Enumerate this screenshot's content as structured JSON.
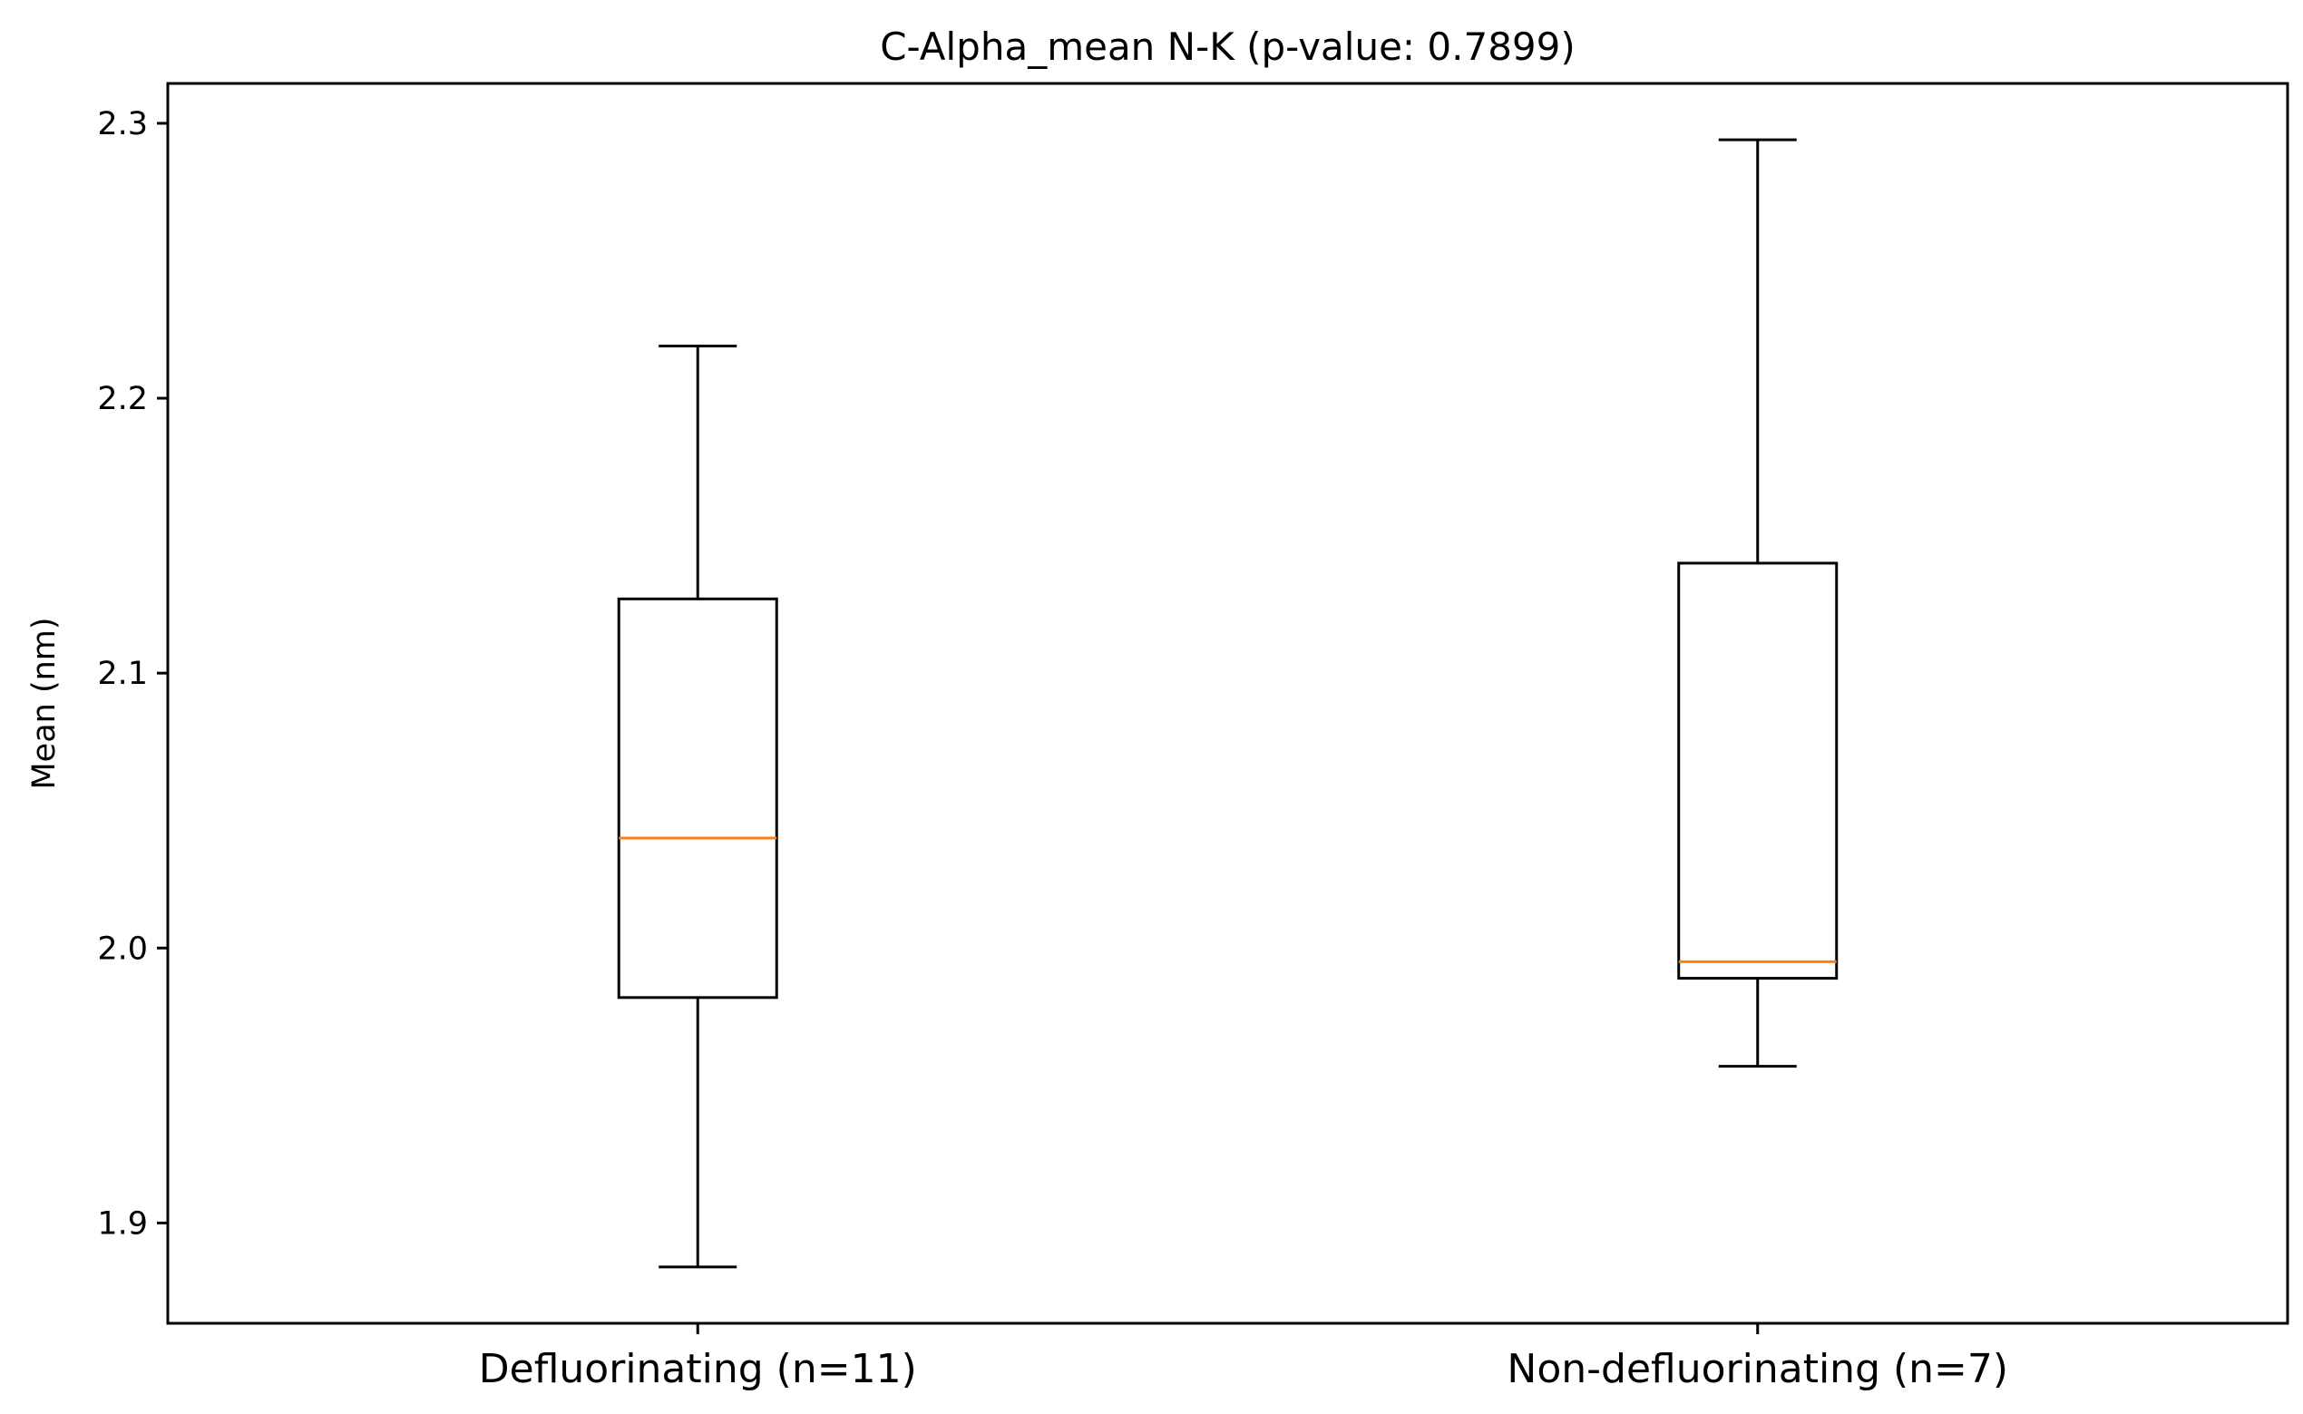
{
  "chart_data": {
    "type": "boxplot",
    "title": "C-Alpha_mean N-K (p-value: 0.7899)",
    "xlabel": "",
    "ylabel": "Mean (nm)",
    "ylim": [
      1.8635,
      2.3145
    ],
    "yticks": [
      1.9,
      2.0,
      2.1,
      2.2,
      2.3
    ],
    "ytick_labels": [
      "1.9",
      "2.0",
      "2.1",
      "2.2",
      "2.3"
    ],
    "grid": false,
    "categories": [
      "Defluorinating (n=11)",
      "Non-defluorinating (n=7)"
    ],
    "boxes": [
      {
        "whisker_low": 1.884,
        "q1": 1.982,
        "median": 2.04,
        "q3": 2.127,
        "whisker_high": 2.219
      },
      {
        "whisker_low": 1.957,
        "q1": 1.989,
        "median": 1.995,
        "q3": 2.14,
        "whisker_high": 2.294
      }
    ],
    "colors": {
      "box": "#000000",
      "median": "#ff7f0e",
      "axes": "#000000"
    }
  }
}
